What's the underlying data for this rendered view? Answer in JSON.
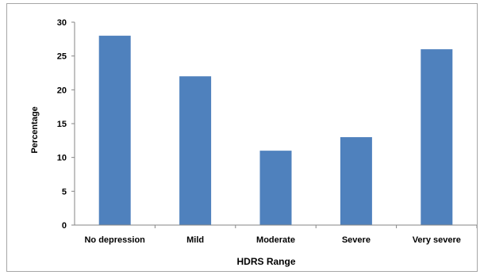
{
  "chart_data": {
    "type": "bar",
    "categories": [
      "No depression",
      "Mild",
      "Moderate",
      "Severe",
      "Very severe"
    ],
    "values": [
      28,
      22,
      11,
      13,
      26
    ],
    "xlabel": "HDRS Range",
    "ylabel": "Percentage",
    "ylim": [
      0,
      30
    ],
    "yticks": [
      0,
      5,
      10,
      15,
      20,
      25,
      30
    ],
    "grid": false,
    "legend": "none",
    "bar_color": "#4f81bd"
  }
}
